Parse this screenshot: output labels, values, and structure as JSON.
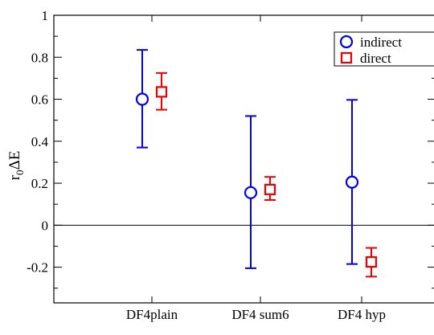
{
  "chart_data": {
    "type": "scatter",
    "subtype": "errorbar",
    "title": "",
    "xlabel": "",
    "ylabel": {
      "main": "r",
      "sub": "0",
      "suffix": "ΔE"
    },
    "categories": [
      "DF4plain",
      "DF4 sum6",
      "DF4 hyp"
    ],
    "ylim": [
      -0.37,
      1.0
    ],
    "yticks": [
      -0.2,
      0,
      0.2,
      0.4,
      0.6,
      0.8,
      1
    ],
    "ytick_labels": [
      "-0.2",
      "0",
      "0.2",
      "0.4",
      "0.6",
      "0.8",
      "1"
    ],
    "zero_line": true,
    "grid": false,
    "legend_position": "top-right",
    "series": [
      {
        "name": "indirect",
        "marker": "circle",
        "color": "#0000ee",
        "values": [
          0.6,
          0.155,
          0.205
        ],
        "lower": [
          0.37,
          -0.205,
          -0.185
        ],
        "upper": [
          0.835,
          0.52,
          0.597
        ]
      },
      {
        "name": "direct",
        "marker": "square",
        "color": "#ee0000",
        "values": [
          0.635,
          0.17,
          -0.175
        ],
        "lower": [
          0.55,
          0.12,
          -0.245
        ],
        "upper": [
          0.725,
          0.23,
          -0.108
        ]
      }
    ]
  }
}
